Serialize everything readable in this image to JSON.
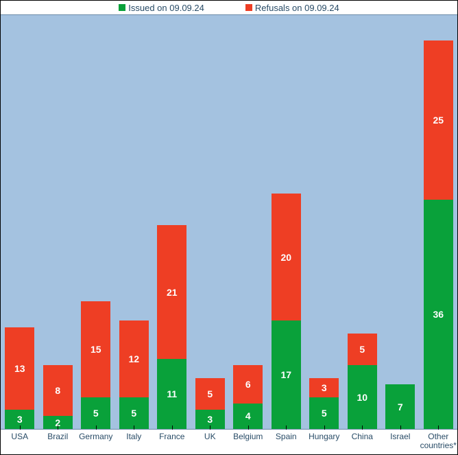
{
  "chart": {
    "type": "stacked-bar",
    "background_color": "#a4c2e0",
    "axis_text_color": "#284b66",
    "tick_fontsize": 12,
    "value_label_color": "#ffffff",
    "value_label_fontsize": 14,
    "value_label_fontweight": "bold",
    "bar_width_ratio": 0.78,
    "y_max": 65,
    "legend": [
      {
        "label": "Issued on 09.09.24",
        "color": "#09a13a"
      },
      {
        "label": "Refusals on 09.09.24",
        "color": "#ee3e24"
      }
    ],
    "categories": [
      "USA",
      "Brazil",
      "Germany",
      "Italy",
      "France",
      "UK",
      "Belgium",
      "Spain",
      "Hungary",
      "China",
      "Israel",
      "Other countries*"
    ],
    "series": {
      "issued": {
        "color": "#09a13a",
        "values": [
          3,
          2,
          5,
          5,
          11,
          3,
          4,
          17,
          5,
          10,
          7,
          36
        ]
      },
      "refusals": {
        "color": "#ee3e24",
        "values": [
          13,
          8,
          15,
          12,
          21,
          5,
          6,
          20,
          3,
          5,
          0,
          25
        ]
      }
    }
  }
}
